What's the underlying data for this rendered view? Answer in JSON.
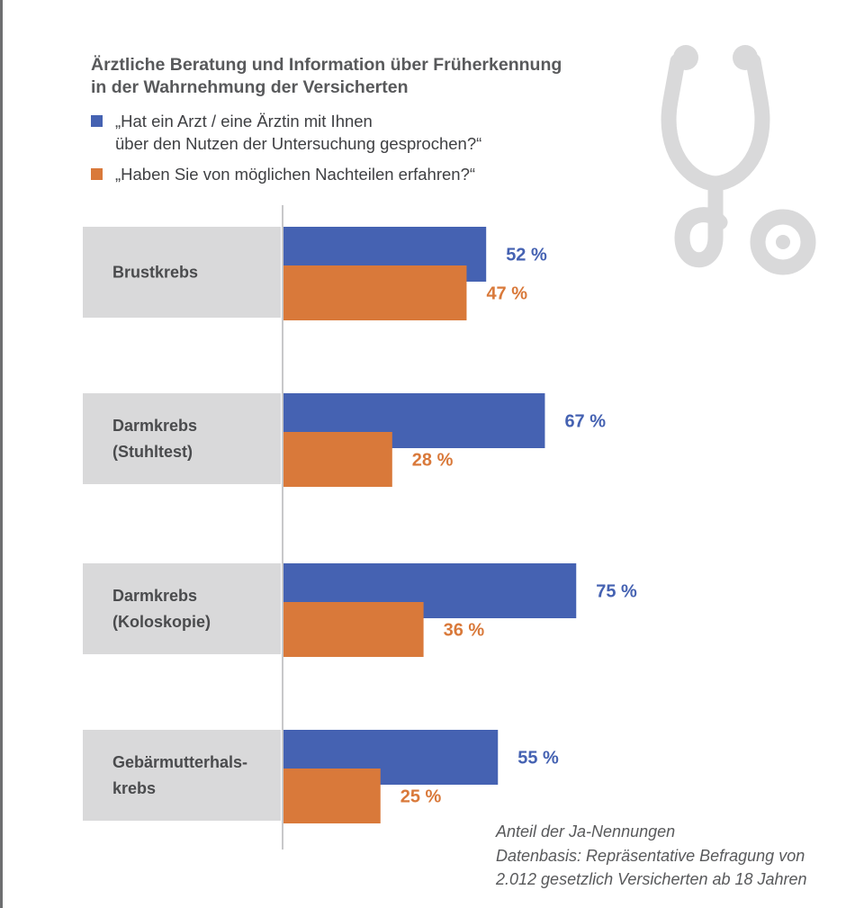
{
  "title_lines": [
    "Ärztliche Beratung und Information über Früherkennung",
    "in der Wahrnehmung der Versicherten"
  ],
  "legend": [
    {
      "lines": [
        "„Hat ein Arzt / eine Ärztin mit Ihnen",
        "über den Nutzen der Untersuchung gesprochen?“"
      ],
      "color": "#4562b2"
    },
    {
      "lines": [
        "„Haben Sie von möglichen Nachteilen erfahren?“"
      ],
      "color": "#d9793a"
    }
  ],
  "footnote_lines": [
    "Anteil der Ja-Nennungen",
    "Datenbasis: Repräsentative Befragung von",
    "2.012 gesetzlich Versicherten ab 18 Jahren"
  ],
  "icon": "stethoscope-icon",
  "colors": {
    "series_1": "#4562b2",
    "series_2": "#d9793a",
    "category_box": "#d9d9da",
    "axis": "#c8c8ca",
    "icon": "#d9d9da"
  },
  "chart_data": {
    "type": "bar",
    "orientation": "horizontal",
    "categories": [
      [
        "Brustkrebs"
      ],
      [
        "Darmkrebs",
        "(Stuhltest)"
      ],
      [
        "Darmkrebs",
        "(Koloskopie)"
      ],
      [
        "Gebärmutterhals-",
        "krebs"
      ]
    ],
    "series": [
      {
        "name": "„Hat ein Arzt / eine Ärztin mit Ihnen über den Nutzen der Untersuchung gesprochen?“",
        "values": [
          52,
          67,
          75,
          55
        ],
        "labels": [
          "52 %",
          "67 %",
          "75 %",
          "55 %"
        ]
      },
      {
        "name": "„Haben Sie von möglichen Nachteilen erfahren?“",
        "values": [
          47,
          28,
          36,
          25
        ],
        "labels": [
          "47 %",
          "28 %",
          "36 %",
          "25 %"
        ]
      }
    ],
    "unit": "%",
    "xlim": [
      0,
      100
    ]
  }
}
